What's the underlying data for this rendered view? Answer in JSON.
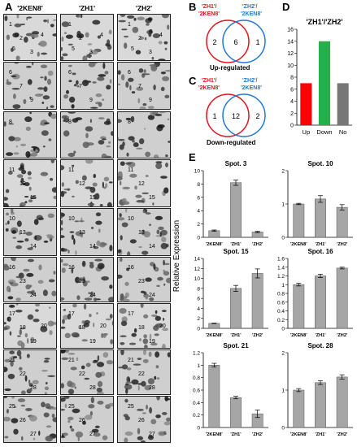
{
  "panel_labels": {
    "a": "A",
    "b": "B",
    "c": "C",
    "d": "D",
    "e": "E"
  },
  "gel_columns": [
    "'2KEN8'",
    "'ZH1'",
    "'ZH2'"
  ],
  "gel_rows": [
    {
      "spots": [
        "1",
        "2",
        "3",
        "4",
        "5"
      ]
    },
    {
      "spots": [
        "6",
        "7",
        "9"
      ]
    },
    {
      "spots": [
        "8"
      ]
    },
    {
      "spots": [
        "11",
        "12",
        "15"
      ]
    },
    {
      "spots": [
        "10",
        "13",
        "14"
      ]
    },
    {
      "spots": [
        "16",
        "23",
        "24"
      ]
    },
    {
      "spots": [
        "17",
        "18",
        "19",
        "20"
      ]
    },
    {
      "spots": [
        "21",
        "22",
        "28"
      ]
    },
    {
      "spots": [
        "25",
        "26",
        "27"
      ]
    }
  ],
  "venn_up": {
    "left_label_line1": "'ZH1'/",
    "left_label_line2": "'2KEN8'",
    "right_label_line1": "'ZH2'/",
    "right_label_line2": "'2KEN8'",
    "left_only": "2",
    "both": "6",
    "right_only": "1",
    "caption": "Up-regulated"
  },
  "venn_down": {
    "left_label_line1": "'ZH1'/",
    "left_label_line2": "'2KEN8'",
    "right_label_line1": "'ZH2'/",
    "right_label_line2": "'2KEN8'",
    "left_only": "1",
    "both": "12",
    "right_only": "2",
    "caption": "Down-regulated"
  },
  "chart_data": [
    {
      "id": "D",
      "type": "bar",
      "title": "'ZH1'/'ZH2'",
      "categories": [
        "Up",
        "Down",
        "No"
      ],
      "values": [
        7,
        14,
        7
      ],
      "colors": [
        "#ff0000",
        "#22b14c",
        "#777777"
      ],
      "ylim": [
        0,
        16
      ],
      "yticks": [
        0,
        2,
        4,
        6,
        8,
        10,
        12,
        14,
        16
      ],
      "grid": false
    },
    {
      "id": "E1",
      "type": "bar",
      "title": "Spot. 3",
      "categories": [
        "'2KEN8'",
        "'ZH1'",
        "'ZH2'"
      ],
      "values": [
        1,
        8.2,
        0.8
      ],
      "errors": [
        0.1,
        0.4,
        0.1
      ],
      "ylim": [
        0,
        10
      ],
      "yticks": [
        0,
        2,
        4,
        6,
        8,
        10
      ]
    },
    {
      "id": "E2",
      "type": "bar",
      "title": "Spot. 10",
      "categories": [
        "'2KEN8'",
        "'ZH1'",
        "'ZH2'"
      ],
      "values": [
        1,
        1.15,
        0.9
      ],
      "errors": [
        0.02,
        0.1,
        0.08
      ],
      "ylim": [
        0,
        2
      ],
      "yticks": [
        0,
        1,
        2
      ]
    },
    {
      "id": "E3",
      "type": "bar",
      "title": "Spot. 15",
      "categories": [
        "'2KEN8'",
        "'ZH1'",
        "'ZH2'"
      ],
      "values": [
        1,
        8,
        11
      ],
      "errors": [
        0.05,
        0.6,
        0.9
      ],
      "ylim": [
        0,
        14
      ],
      "yticks": [
        0,
        2,
        4,
        6,
        8,
        10,
        12,
        14
      ]
    },
    {
      "id": "E4",
      "type": "bar",
      "title": "Spot. 16",
      "categories": [
        "'2KEN8'",
        "'ZH1'",
        "'ZH2'"
      ],
      "values": [
        1.0,
        1.2,
        1.38
      ],
      "errors": [
        0.03,
        0.04,
        0.02
      ],
      "ylim": [
        0,
        1.6
      ],
      "yticks": [
        0,
        0.2,
        0.4,
        0.6,
        0.8,
        1,
        1.2,
        1.4,
        1.6
      ]
    },
    {
      "id": "E5",
      "type": "bar",
      "title": "Spot. 21",
      "categories": [
        "'2KEN8'",
        "'ZH1'",
        "'ZH2'"
      ],
      "values": [
        1,
        0.48,
        0.22
      ],
      "errors": [
        0.03,
        0.02,
        0.06
      ],
      "ylim": [
        0,
        1.2
      ],
      "yticks": [
        0,
        0.2,
        0.4,
        0.6,
        0.8,
        1,
        1.2
      ]
    },
    {
      "id": "E6",
      "type": "bar",
      "title": "Spot. 28",
      "categories": [
        "'2KEN8'",
        "'ZH1'",
        "'ZH2'"
      ],
      "values": [
        1,
        1.2,
        1.35
      ],
      "errors": [
        0.04,
        0.05,
        0.06
      ],
      "ylim": [
        0,
        2
      ],
      "yticks": [
        0,
        1,
        2
      ]
    }
  ],
  "e_ylabel": "Relative Expression"
}
